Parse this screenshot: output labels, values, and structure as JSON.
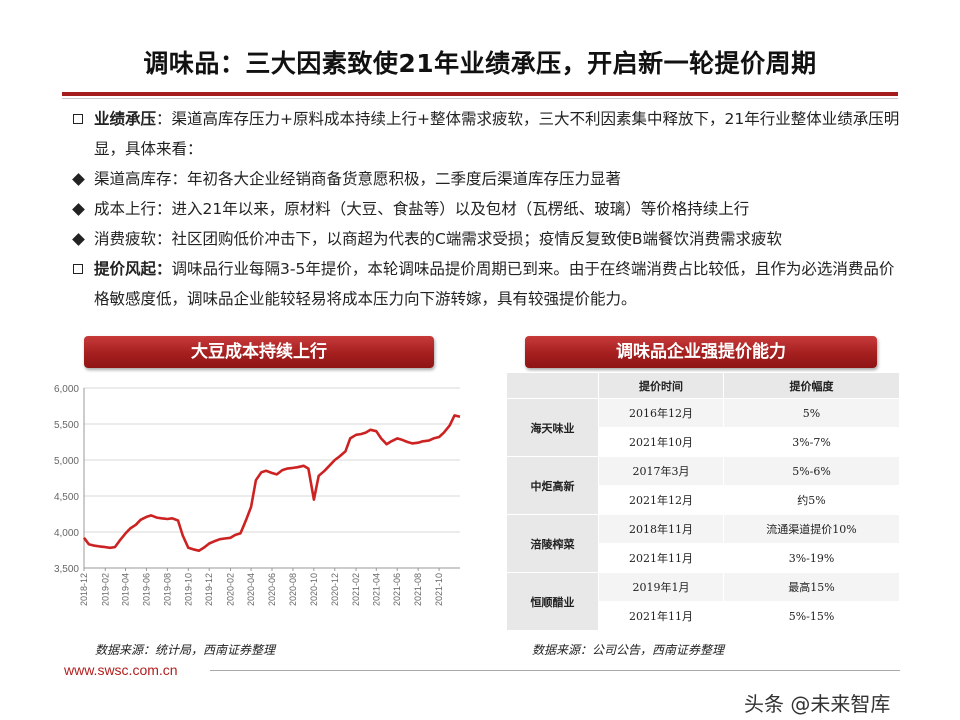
{
  "title": "调味品：三大因素致使21年业绩承压，开启新一轮提价周期",
  "bullets": [
    {
      "marker": "square",
      "bold": "业绩承压",
      "text": "：渠道高库存压力+原料成本持续上行+整体需求疲软，三大不利因素集中释放下，21年行业整体业绩承压明显，具体来看："
    },
    {
      "marker": "diamond",
      "bold": "",
      "text": "渠道高库存：年初各大企业经销商备货意愿积极，二季度后渠道库存压力显著"
    },
    {
      "marker": "diamond",
      "bold": "",
      "text": "成本上行：进入21年以来，原材料（大豆、食盐等）以及包材（瓦楞纸、玻璃）等价格持续上行"
    },
    {
      "marker": "diamond",
      "bold": "",
      "text": "消费疲软：社区团购低价冲击下，以商超为代表的C端需求受损；疫情反复致使B端餐饮消费需求疲软"
    },
    {
      "marker": "square",
      "bold": "提价风起：",
      "text": "调味品行业每隔3-5年提价，本轮调味品提价周期已到来。由于在终端消费占比较低，且作为必选消费品价格敏感度低，调味品企业能较轻易将成本压力向下游转嫁，具有较强提价能力。"
    }
  ],
  "left_banner": "大豆成本持续上行",
  "right_banner": "调味品企业强提价能力",
  "chart_data": {
    "type": "line",
    "title": "",
    "xlabel": "",
    "ylabel": "",
    "ylim": [
      3500,
      6000
    ],
    "yticks": [
      "3,500",
      "4,000",
      "4,500",
      "5,000",
      "5,500",
      "6,000"
    ],
    "xticks": [
      "2018-12",
      "2019-02",
      "2019-04",
      "2019-06",
      "2019-08",
      "2019-10",
      "2019-12",
      "2020-02",
      "2020-04",
      "2020-06",
      "2020-08",
      "2020-10",
      "2020-12",
      "2021-02",
      "2021-04",
      "2021-06",
      "2021-08",
      "2021-10"
    ],
    "color": "#cc2222",
    "grid": true,
    "series": [
      {
        "name": "",
        "x": [
          "2018-12-01",
          "2018-12-15",
          "2019-01-01",
          "2019-01-15",
          "2019-02-01",
          "2019-02-15",
          "2019-03-01",
          "2019-03-15",
          "2019-04-01",
          "2019-04-15",
          "2019-05-01",
          "2019-05-15",
          "2019-06-01",
          "2019-06-15",
          "2019-07-01",
          "2019-07-15",
          "2019-08-01",
          "2019-08-15",
          "2019-09-01",
          "2019-09-15",
          "2019-10-01",
          "2019-10-15",
          "2019-11-01",
          "2019-11-15",
          "2019-12-01",
          "2019-12-15",
          "2020-01-01",
          "2020-01-15",
          "2020-02-01",
          "2020-02-15",
          "2020-03-01",
          "2020-03-10",
          "2020-03-20",
          "2020-04-01",
          "2020-04-15",
          "2020-05-01",
          "2020-05-15",
          "2020-06-01",
          "2020-06-15",
          "2020-07-01",
          "2020-07-15",
          "2020-08-01",
          "2020-08-15",
          "2020-09-01",
          "2020-09-15",
          "2020-10-01",
          "2020-10-15",
          "2020-11-01",
          "2020-11-15",
          "2020-12-01",
          "2020-12-15",
          "2021-01-01",
          "2021-01-15",
          "2021-02-01",
          "2021-02-15",
          "2021-03-01",
          "2021-03-15",
          "2021-04-01",
          "2021-04-15",
          "2021-05-01",
          "2021-05-15",
          "2021-06-01",
          "2021-06-15",
          "2021-07-01",
          "2021-07-15",
          "2021-08-01",
          "2021-08-15",
          "2021-09-01",
          "2021-09-15",
          "2021-10-01",
          "2021-10-15",
          "2021-11-01",
          "2021-11-15",
          "2021-12-01"
        ],
        "values": [
          3920,
          3830,
          3810,
          3800,
          3790,
          3780,
          3790,
          3880,
          3980,
          4050,
          4100,
          4170,
          4210,
          4230,
          4200,
          4190,
          4180,
          4190,
          4160,
          3950,
          3780,
          3760,
          3740,
          3780,
          3840,
          3870,
          3900,
          3910,
          3920,
          3960,
          3980,
          4080,
          4200,
          4350,
          4720,
          4830,
          4850,
          4820,
          4800,
          4860,
          4880,
          4890,
          4900,
          4920,
          4880,
          4450,
          4780,
          4850,
          4920,
          5000,
          5050,
          5120,
          5300,
          5350,
          5360,
          5380,
          5420,
          5400,
          5300,
          5220,
          5260,
          5300,
          5280,
          5250,
          5230,
          5240,
          5260,
          5270,
          5300,
          5320,
          5380,
          5480,
          5620,
          5600
        ]
      }
    ]
  },
  "chart_source": "数据来源：统计局，西南证券整理",
  "table": {
    "headers": [
      "",
      "提价时间",
      "提价幅度"
    ],
    "companies": [
      {
        "name": "海天味业",
        "rows": [
          [
            "2016年12月",
            "5%"
          ],
          [
            "2021年10月",
            "3%-7%"
          ]
        ]
      },
      {
        "name": "中炬高新",
        "rows": [
          [
            "2017年3月",
            "5%-6%"
          ],
          [
            "2021年12月",
            "约5%"
          ]
        ]
      },
      {
        "name": "涪陵榨菜",
        "rows": [
          [
            "2018年11月",
            "流通渠道提价10%"
          ],
          [
            "2021年11月",
            "3%-19%"
          ]
        ]
      },
      {
        "name": "恒顺醋业",
        "rows": [
          [
            "2019年1月",
            "最高15%"
          ],
          [
            "2021年11月",
            "5%-15%"
          ]
        ]
      }
    ]
  },
  "table_source": "数据来源：公司公告，西南证券整理",
  "website": "www.swsc.com.cn",
  "watermark": "头条 @未来智库"
}
